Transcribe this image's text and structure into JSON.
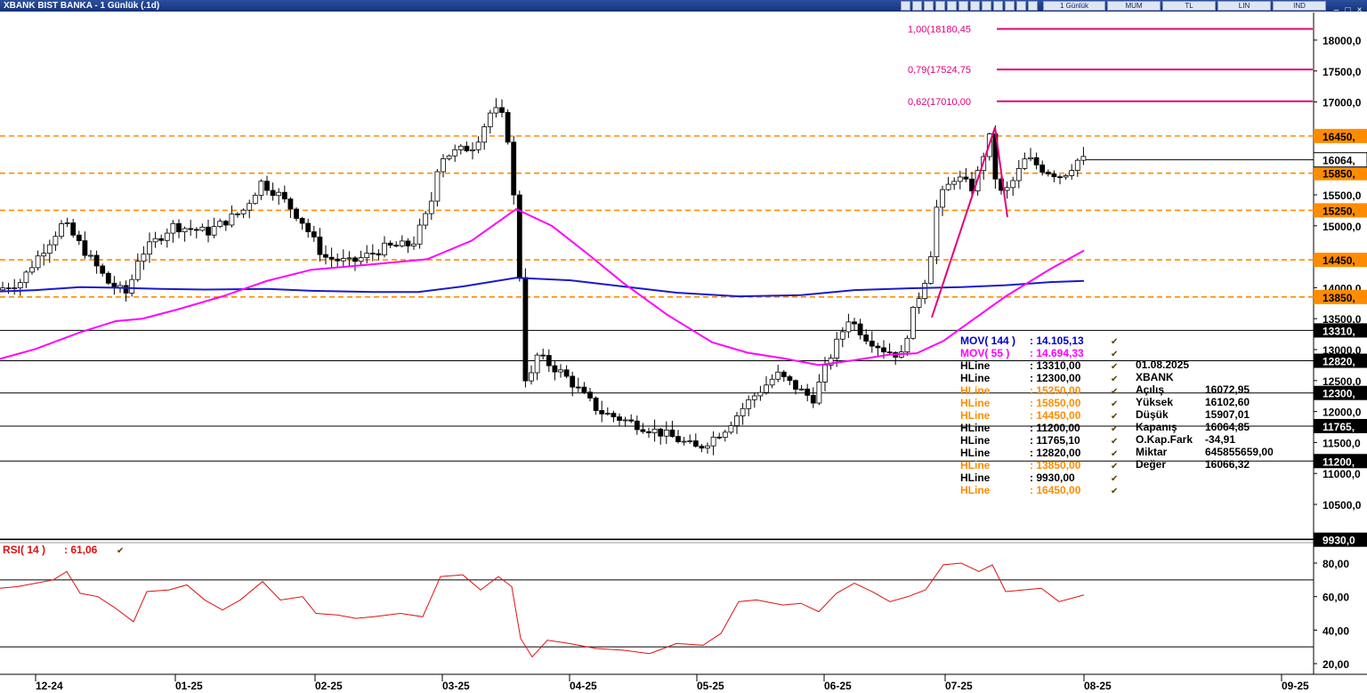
{
  "window": {
    "title": "XBANK BIST BANKA - 1 Günlük (.1d)",
    "toolbar": [
      "1 Günlük",
      "MUM",
      "TL",
      "LIN",
      "IND"
    ]
  },
  "chart_data": [
    {
      "type": "candlestick",
      "title": "XBANK BIST BANKA - 1 Günlük (.1d)",
      "y_axis": {
        "ticks": [
          18000,
          17500,
          17000,
          16500,
          16000,
          15500,
          15000,
          14500,
          14000,
          13500,
          13000,
          12500,
          12000,
          11500,
          11000,
          10500
        ],
        "tick_labels": [
          "18000,0",
          "17500,0",
          "17000,0",
          "16500,0",
          "16000,0",
          "15500,0",
          "15000,0",
          "14500,0",
          "14000,0",
          "13500,0",
          "13000,0",
          "12500,0",
          "12000,0",
          "11500,0",
          "11000,0",
          "10500,0"
        ],
        "ylim": [
          9930,
          18450
        ]
      },
      "x_axis": {
        "tick_labels": [
          "12-24",
          "01-25",
          "02-25",
          "03-25",
          "04-25",
          "05-25",
          "06-25",
          "07-25",
          "08-25",
          "09-25"
        ]
      },
      "price_marker": {
        "value": 16064.85,
        "label": "16064,"
      },
      "fibonacci": [
        {
          "label": "1,00(18180,45",
          "value": 18180.45
        },
        {
          "label": "0,79(17524,75",
          "value": 17524.75
        },
        {
          "label": "0,62(17010,00",
          "value": 17010.0
        }
      ],
      "hlines": [
        {
          "value": 16450,
          "label": "16450,",
          "color": "#ff8c00"
        },
        {
          "value": 15850,
          "label": "15850,",
          "color": "#ff8c00"
        },
        {
          "value": 15250,
          "label": "15250,",
          "color": "#ff8c00"
        },
        {
          "value": 14450,
          "label": "14450,",
          "color": "#ff8c00"
        },
        {
          "value": 13850,
          "label": "13850,",
          "color": "#ff8c00"
        },
        {
          "value": 13310,
          "label": "13310,",
          "color": "#000000"
        },
        {
          "value": 12820,
          "label": "12820,",
          "color": "#000000"
        },
        {
          "value": 12300,
          "label": "12300,",
          "color": "#000000"
        },
        {
          "value": 11765.1,
          "label": "11765,",
          "color": "#000000"
        },
        {
          "value": 11200,
          "label": "11200,",
          "color": "#000000"
        },
        {
          "value": 9930,
          "label": "9930,0",
          "color": "#000000"
        }
      ],
      "legend": [
        {
          "name": "MOV( 144 )",
          "value": ": 14.105,13",
          "color": "#0000cc"
        },
        {
          "name": "MOV( 55 )",
          "value": ": 14.694,33",
          "color": "#ff00ff"
        },
        {
          "name": "HLine",
          "value": ": 13310,00",
          "color": "#000000"
        },
        {
          "name": "HLine",
          "value": ": 12300,00",
          "color": "#000000"
        },
        {
          "name": "HLine",
          "value": ": 15250,00",
          "color": "#ff8c00"
        },
        {
          "name": "HLine",
          "value": ": 15850,00",
          "color": "#ff8c00"
        },
        {
          "name": "HLine",
          "value": ": 14450,00",
          "color": "#ff8c00"
        },
        {
          "name": "HLine",
          "value": ": 11200,00",
          "color": "#000000"
        },
        {
          "name": "HLine",
          "value": ": 11765,10",
          "color": "#000000"
        },
        {
          "name": "HLine",
          "value": ": 12820,00",
          "color": "#000000"
        },
        {
          "name": "HLine",
          "value": ": 13850,00",
          "color": "#ff8c00"
        },
        {
          "name": "HLine",
          "value": ": 9930,00",
          "color": "#000000"
        },
        {
          "name": "HLine",
          "value": ": 16450,00",
          "color": "#ff8c00"
        }
      ],
      "info_box": {
        "date": "01.08.2025",
        "symbol": "XBANK",
        "rows": [
          {
            "label": "Açılış",
            "value": "16072,95"
          },
          {
            "label": "Yüksek",
            "value": "16102,60"
          },
          {
            "label": "Düşük",
            "value": "15907,01"
          },
          {
            "label": "Kapanış",
            "value": "16064,85"
          },
          {
            "label": "O.Kap.Fark",
            "value": "-34,91"
          },
          {
            "label": "Miktar",
            "value": "645855659,00"
          },
          {
            "label": "Değer",
            "value": "16066,32"
          }
        ]
      },
      "ma144": [
        [
          0,
          13940
        ],
        [
          40,
          13960
        ],
        [
          90,
          14010
        ],
        [
          130,
          14000
        ],
        [
          180,
          13980
        ],
        [
          230,
          13970
        ],
        [
          300,
          13980
        ],
        [
          350,
          13950
        ],
        [
          420,
          13930
        ],
        [
          470,
          13930
        ],
        [
          520,
          14020
        ],
        [
          580,
          14160
        ],
        [
          640,
          14120
        ],
        [
          700,
          14020
        ],
        [
          760,
          13920
        ],
        [
          830,
          13860
        ],
        [
          900,
          13880
        ],
        [
          960,
          13960
        ],
        [
          1020,
          13990
        ],
        [
          1080,
          14010
        ],
        [
          1130,
          14040
        ],
        [
          1180,
          14090
        ],
        [
          1218,
          14110
        ]
      ],
      "ma55": [
        [
          0,
          12850
        ],
        [
          40,
          13010
        ],
        [
          90,
          13280
        ],
        [
          130,
          13460
        ],
        [
          160,
          13500
        ],
        [
          200,
          13650
        ],
        [
          250,
          13860
        ],
        [
          300,
          14110
        ],
        [
          350,
          14290
        ],
        [
          420,
          14380
        ],
        [
          480,
          14460
        ],
        [
          530,
          14760
        ],
        [
          580,
          15270
        ],
        [
          620,
          15000
        ],
        [
          660,
          14550
        ],
        [
          700,
          14080
        ],
        [
          750,
          13560
        ],
        [
          800,
          13120
        ],
        [
          840,
          12950
        ],
        [
          880,
          12860
        ],
        [
          920,
          12750
        ],
        [
          960,
          12830
        ],
        [
          1000,
          12920
        ],
        [
          1030,
          12940
        ],
        [
          1060,
          13140
        ],
        [
          1090,
          13450
        ],
        [
          1130,
          13860
        ],
        [
          1180,
          14300
        ],
        [
          1218,
          14600
        ]
      ],
      "trendline": [
        [
          1047,
          13520
        ],
        [
          1118,
          16590
        ],
        [
          1132,
          15140
        ]
      ],
      "price_path": [
        [
          0,
          13950
        ],
        [
          30,
          14100
        ],
        [
          48,
          14480
        ],
        [
          78,
          15050
        ],
        [
          104,
          14550
        ],
        [
          130,
          14050
        ],
        [
          150,
          13900
        ],
        [
          162,
          14500
        ],
        [
          200,
          15000
        ],
        [
          240,
          14900
        ],
        [
          280,
          15250
        ],
        [
          300,
          15700
        ],
        [
          320,
          15500
        ],
        [
          345,
          15100
        ],
        [
          370,
          14500
        ],
        [
          400,
          14400
        ],
        [
          440,
          14650
        ],
        [
          470,
          14700
        ],
        [
          490,
          15300
        ],
        [
          500,
          16100
        ],
        [
          520,
          16200
        ],
        [
          540,
          16300
        ],
        [
          560,
          16900
        ],
        [
          575,
          16700
        ],
        [
          582,
          15800
        ],
        [
          590,
          14300
        ],
        [
          598,
          12300
        ],
        [
          610,
          12900
        ],
        [
          640,
          12600
        ],
        [
          680,
          12000
        ],
        [
          720,
          11800
        ],
        [
          760,
          11600
        ],
        [
          790,
          11400
        ],
        [
          820,
          11700
        ],
        [
          850,
          12200
        ],
        [
          880,
          12600
        ],
        [
          920,
          12200
        ],
        [
          940,
          12900
        ],
        [
          960,
          13500
        ],
        [
          980,
          13200
        ],
        [
          1000,
          13000
        ],
        [
          1020,
          12900
        ],
        [
          1030,
          13500
        ],
        [
          1050,
          14300
        ],
        [
          1060,
          15400
        ],
        [
          1080,
          15800
        ],
        [
          1100,
          15600
        ],
        [
          1118,
          16450
        ],
        [
          1128,
          15500
        ],
        [
          1140,
          15600
        ],
        [
          1160,
          16100
        ],
        [
          1180,
          15900
        ],
        [
          1200,
          15800
        ],
        [
          1218,
          16065
        ]
      ],
      "candles": []
    },
    {
      "type": "line",
      "title": "RSI( 14 ) : 61,06",
      "label_name": "RSI( 14 )",
      "label_value": ": 61,06",
      "y_axis": {
        "ticks": [
          80,
          60,
          40,
          20
        ],
        "tick_labels": [
          "80,00",
          "60,00",
          "40,00",
          "20,00"
        ],
        "ylim": [
          12,
          92
        ]
      },
      "hlines": [
        70,
        30
      ],
      "values": [
        [
          0,
          65
        ],
        [
          20,
          66
        ],
        [
          40,
          68
        ],
        [
          60,
          70
        ],
        [
          75,
          75
        ],
        [
          90,
          62
        ],
        [
          110,
          60
        ],
        [
          130,
          53
        ],
        [
          150,
          45
        ],
        [
          165,
          63
        ],
        [
          190,
          64
        ],
        [
          210,
          67
        ],
        [
          230,
          58
        ],
        [
          250,
          52
        ],
        [
          270,
          58
        ],
        [
          295,
          69
        ],
        [
          315,
          58
        ],
        [
          340,
          60
        ],
        [
          355,
          50
        ],
        [
          380,
          49
        ],
        [
          400,
          47
        ],
        [
          420,
          48
        ],
        [
          450,
          50
        ],
        [
          475,
          48
        ],
        [
          495,
          72
        ],
        [
          520,
          73
        ],
        [
          540,
          64
        ],
        [
          560,
          72
        ],
        [
          575,
          66
        ],
        [
          585,
          35
        ],
        [
          598,
          24
        ],
        [
          615,
          34
        ],
        [
          640,
          32
        ],
        [
          670,
          29
        ],
        [
          700,
          28
        ],
        [
          730,
          26
        ],
        [
          760,
          32
        ],
        [
          790,
          31
        ],
        [
          810,
          38
        ],
        [
          830,
          57
        ],
        [
          850,
          58
        ],
        [
          880,
          55
        ],
        [
          900,
          56
        ],
        [
          920,
          51
        ],
        [
          940,
          62
        ],
        [
          960,
          68
        ],
        [
          980,
          63
        ],
        [
          1000,
          57
        ],
        [
          1020,
          60
        ],
        [
          1040,
          64
        ],
        [
          1060,
          79
        ],
        [
          1080,
          80
        ],
        [
          1100,
          75
        ],
        [
          1115,
          79
        ],
        [
          1130,
          63
        ],
        [
          1150,
          64
        ],
        [
          1170,
          65
        ],
        [
          1190,
          57
        ],
        [
          1218,
          61
        ]
      ]
    }
  ]
}
